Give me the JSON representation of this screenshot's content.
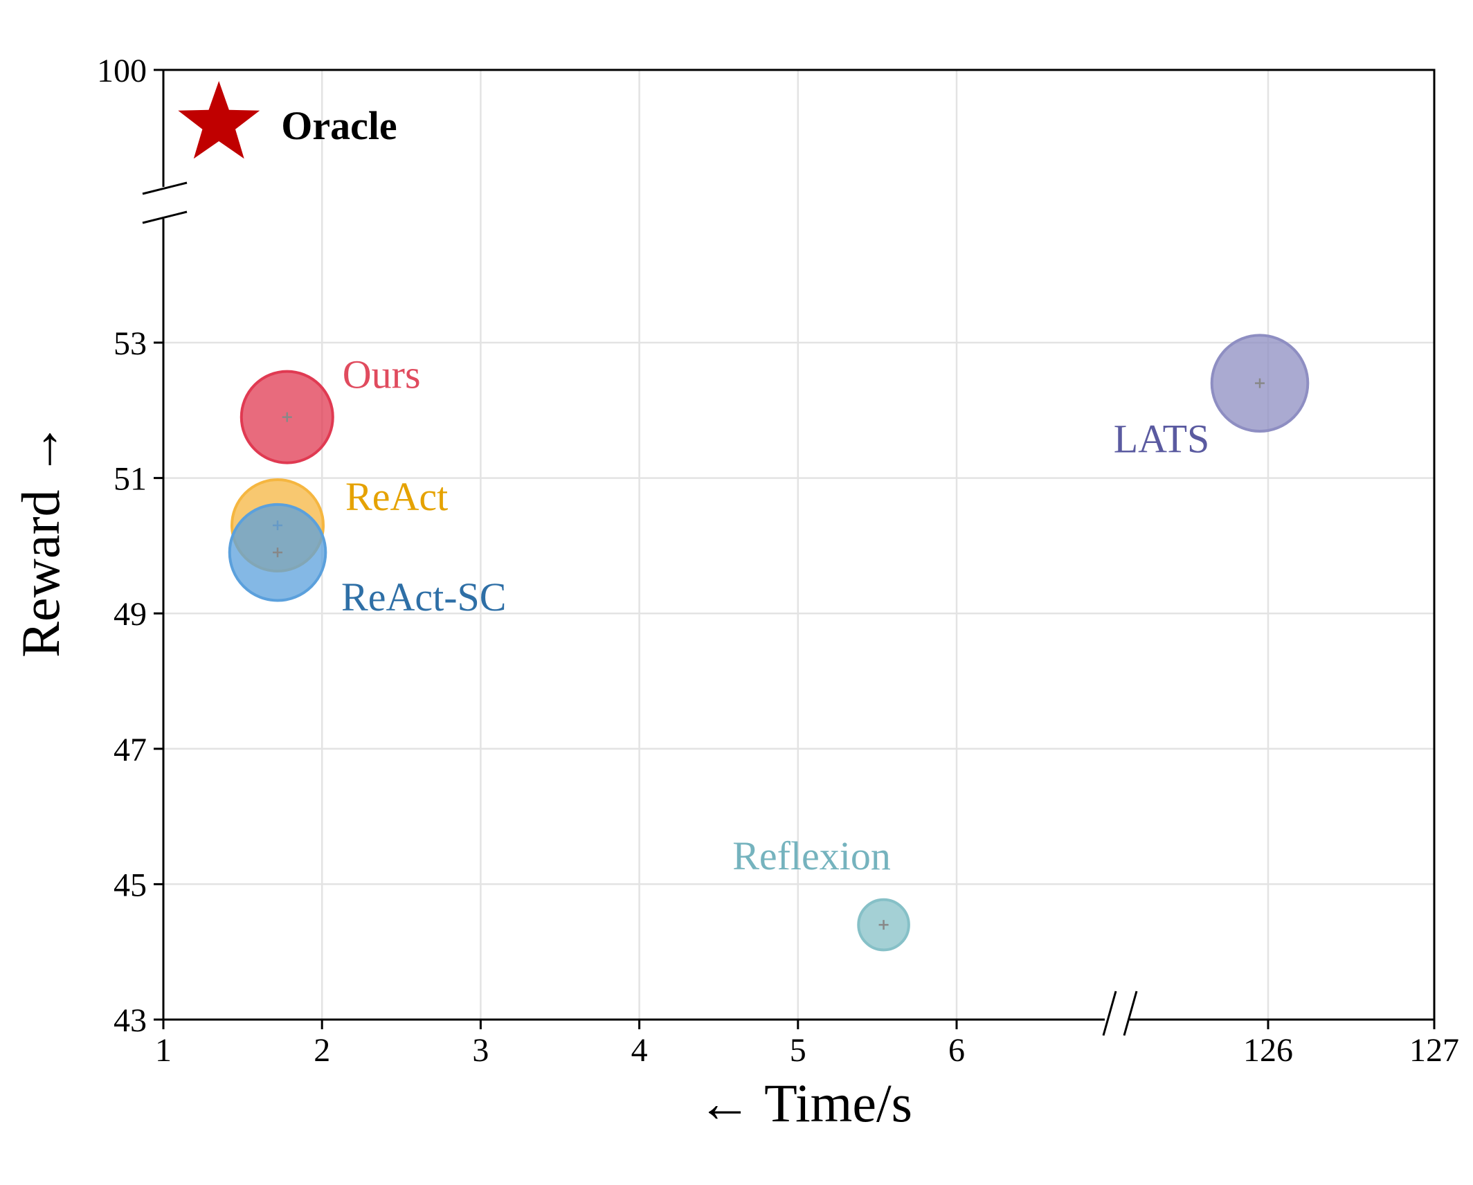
{
  "chart_data": {
    "type": "scatter",
    "title": "",
    "xlabel": "← Time/s",
    "ylabel": "Reward →",
    "x_ticks": [
      "1",
      "2",
      "3",
      "4",
      "5",
      "6",
      "126",
      "127"
    ],
    "y_ticks": [
      "43",
      "45",
      "47",
      "49",
      "51",
      "53",
      "100"
    ],
    "x_axis_break": "between 6 and 126",
    "y_axis_break": "between 53 and 100",
    "ylim": [
      43,
      100
    ],
    "grid": true,
    "points": [
      {
        "name": "Oracle",
        "x": 1.35,
        "y": 100,
        "marker": "star",
        "color": "#C00000"
      },
      {
        "name": "Ours",
        "x": 1.78,
        "y": 51.9,
        "size": 1.0,
        "color": "#E03A52"
      },
      {
        "name": "ReAct",
        "x": 1.72,
        "y": 50.3,
        "size": 1.0,
        "color": "#F5B640"
      },
      {
        "name": "ReAct-SC",
        "x": 1.72,
        "y": 49.9,
        "size": 1.05,
        "color": "#5BA0DC"
      },
      {
        "name": "Reflexion",
        "x": 5.54,
        "y": 44.4,
        "size": 0.55,
        "color": "#86C0C7"
      },
      {
        "name": "LATS",
        "x": 125.95,
        "y": 52.4,
        "size": 1.05,
        "color": "#8E8EC2"
      }
    ],
    "label_colors": {
      "Oracle": "#000000",
      "Ours": "#E04B5E",
      "ReAct": "#E5A200",
      "ReAct-SC": "#2E6FA6",
      "Reflexion": "#75B3BE",
      "LATS": "#5A5AA0"
    }
  }
}
